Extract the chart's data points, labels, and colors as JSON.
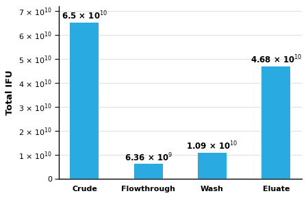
{
  "categories": [
    "Crude",
    "Flowthrough",
    "Wash",
    "Eluate"
  ],
  "values": [
    65000000000.0,
    6360000000.0,
    10900000000.0,
    46800000000.0
  ],
  "labels": [
    "6.5 × 10$^{10}$",
    "6.36 × 10$^{9}$",
    "1.09 × 10$^{10}$",
    "4.68 × 10$^{10}$"
  ],
  "bar_color": "#29abe2",
  "ylabel": "Total IFU",
  "ylim": [
    0,
    72000000000.0
  ],
  "yticks": [
    0,
    10000000000.0,
    20000000000.0,
    30000000000.0,
    40000000000.0,
    50000000000.0,
    60000000000.0,
    70000000000.0
  ],
  "ytick_labels": [
    "0",
    "1 × 10$^{10}$",
    "2 × 10$^{10}$",
    "3 × 10$^{10}$",
    "4 × 10$^{10}$",
    "5 × 10$^{10}$",
    "6 × 10$^{10}$",
    "7 × 10$^{10}$"
  ],
  "background_color": "#ffffff",
  "plot_bg_color": "#ffffff",
  "bar_width": 0.45,
  "label_fontsize": 8.5,
  "axis_fontsize": 9.5,
  "tick_fontsize": 8.0,
  "label_offsets": [
    500000000.0,
    200000000.0,
    300000000.0,
    500000000.0
  ]
}
